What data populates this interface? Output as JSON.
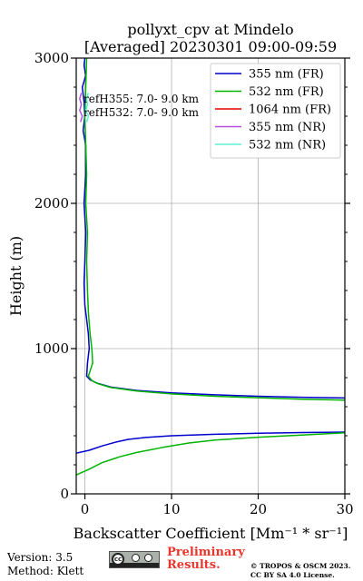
{
  "chart_data": {
    "type": "line",
    "title": [
      "pollyxt_cpv at Mindelo",
      "[Averaged] 20230301 09:00-09:59"
    ],
    "xlabel": "Backscatter Coefficient [Mm⁻¹ * sr⁻¹]",
    "ylabel": "Height (m)",
    "xlim": [
      -1,
      30
    ],
    "ylim": [
      0,
      3000
    ],
    "xticks": [
      0,
      10,
      20,
      30
    ],
    "yticks": [
      0,
      1000,
      2000,
      3000
    ],
    "grid": true,
    "legend_position": "top-right",
    "annotations": [
      "refH355:  7.0- 9.0 km",
      "refH532:  7.0- 9.0 km"
    ],
    "series": [
      {
        "name": "355 nm (FR)",
        "color": "#0000cc",
        "points": [
          [
            -1.0,
            280
          ],
          [
            0.5,
            300
          ],
          [
            2,
            330
          ],
          [
            3.5,
            355
          ],
          [
            5,
            375
          ],
          [
            7,
            388
          ],
          [
            10,
            400
          ],
          [
            15,
            410
          ],
          [
            20,
            417
          ],
          [
            25,
            422
          ],
          [
            30,
            425
          ],
          null,
          [
            30,
            660
          ],
          [
            25,
            665
          ],
          [
            20,
            672
          ],
          [
            15,
            682
          ],
          [
            10,
            695
          ],
          [
            6,
            712
          ],
          [
            3,
            735
          ],
          [
            1.5,
            760
          ],
          [
            0.6,
            785
          ],
          [
            0.2,
            810
          ],
          [
            0.3,
            900
          ],
          [
            0.5,
            1000
          ],
          [
            0.4,
            1100
          ],
          [
            0.2,
            1200
          ],
          [
            0.0,
            1300
          ],
          [
            -0.1,
            1450
          ],
          [
            0.0,
            1600
          ],
          [
            0.1,
            1800
          ],
          [
            -0.1,
            2000
          ],
          [
            0.1,
            2200
          ],
          [
            0.1,
            2400
          ],
          [
            -0.2,
            2500
          ],
          [
            0.0,
            2600
          ],
          [
            -0.1,
            2700
          ],
          [
            -0.3,
            2800
          ],
          [
            0.1,
            2880
          ],
          [
            -0.1,
            2950
          ],
          [
            0.0,
            3000
          ]
        ]
      },
      {
        "name": "532 nm (FR)",
        "color": "#00b400",
        "points": [
          [
            -1.0,
            130
          ],
          [
            0.5,
            170
          ],
          [
            2,
            215
          ],
          [
            4,
            255
          ],
          [
            6,
            285
          ],
          [
            9,
            320
          ],
          [
            12,
            350
          ],
          [
            15,
            370
          ],
          [
            20,
            390
          ],
          [
            25,
            405
          ],
          [
            30,
            420
          ],
          null,
          [
            30,
            645
          ],
          [
            25,
            652
          ],
          [
            20,
            662
          ],
          [
            15,
            672
          ],
          [
            10,
            688
          ],
          [
            6,
            708
          ],
          [
            3,
            732
          ],
          [
            1.5,
            758
          ],
          [
            0.8,
            780
          ],
          [
            0.4,
            810
          ],
          [
            0.9,
            900
          ],
          [
            0.8,
            1000
          ],
          [
            0.6,
            1100
          ],
          [
            0.4,
            1250
          ],
          [
            0.3,
            1400
          ],
          [
            0.2,
            1600
          ],
          [
            0.3,
            1800
          ],
          [
            0.1,
            2000
          ],
          [
            0.2,
            2200
          ],
          [
            0.1,
            2400
          ],
          [
            0.0,
            2600
          ],
          [
            0.1,
            2800
          ],
          [
            0.2,
            3000
          ]
        ]
      },
      {
        "name": "1064 nm (FR)",
        "color": "#e60000",
        "points": []
      },
      {
        "name": "355 nm (NR)",
        "color": "#b450e6",
        "points": [
          [
            -0.5,
            2560
          ],
          [
            -0.3,
            2600
          ],
          [
            -0.6,
            2640
          ],
          [
            -0.4,
            2680
          ],
          [
            -0.6,
            2720
          ],
          [
            -0.4,
            2760
          ]
        ]
      },
      {
        "name": "532 nm (NR)",
        "color": "#5ff0d2",
        "points": [
          [
            0.2,
            2560
          ],
          [
            0.4,
            2600
          ],
          [
            0.1,
            2640
          ],
          [
            0.3,
            2680
          ],
          [
            0.2,
            2720
          ],
          [
            0.4,
            2760
          ]
        ]
      }
    ]
  },
  "footer": {
    "version": "Version: 3.5",
    "method": "Method: Klett",
    "preliminary_line1": "Preliminary",
    "preliminary_line2": "Results.",
    "copyright_line1": "© TROPOS & OSCM 2023.",
    "copyright_line2": "CC BY SA 4.0 License."
  }
}
